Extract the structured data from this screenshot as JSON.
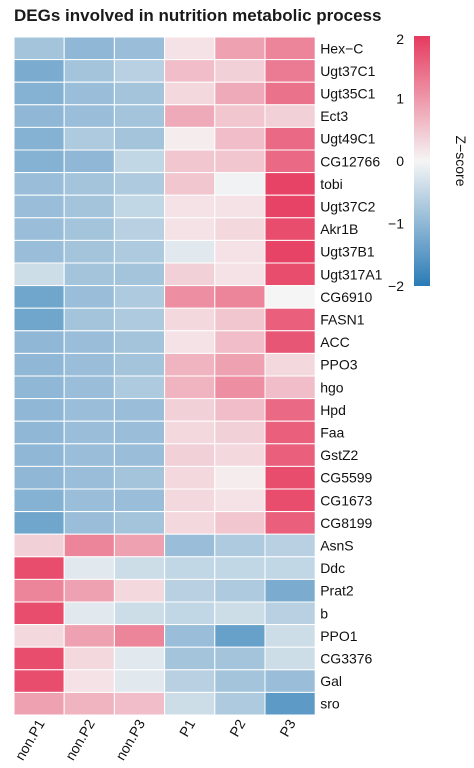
{
  "chart_data": {
    "type": "heatmap",
    "title": "DEGs involved in nutrition metabolic process",
    "columns": [
      "non.P1",
      "non.P2",
      "non.P3",
      "P1",
      "P2",
      "P3"
    ],
    "rows": [
      "Hex−C",
      "Ugt37C1",
      "Ugt35C1",
      "Ect3",
      "Ugt49C1",
      "CG12766",
      "tobi",
      "Ugt37C2",
      "Akr1B",
      "Ugt37B1",
      "Ugt317A1",
      "CG6910",
      "FASN1",
      "ACC",
      "PPO3",
      "hgo",
      "Hpd",
      "Faa",
      "GstZ2",
      "CG5599",
      "CG1673",
      "CG8199",
      "AsnS",
      "Ddc",
      "Prat2",
      "b",
      "PPO1",
      "CG3376",
      "Gal",
      "sro"
    ],
    "values": [
      [
        -0.8,
        -1.0,
        -0.9,
        0.2,
        0.9,
        1.2
      ],
      [
        -1.2,
        -0.8,
        -0.6,
        0.6,
        0.4,
        1.3
      ],
      [
        -1.1,
        -0.9,
        -0.8,
        0.3,
        0.8,
        1.4
      ],
      [
        -1.0,
        -0.9,
        -0.8,
        0.8,
        0.5,
        0.4
      ],
      [
        -1.1,
        -0.7,
        -0.8,
        0.1,
        0.6,
        1.5
      ],
      [
        -1.1,
        -1.0,
        -0.5,
        0.5,
        0.5,
        1.5
      ],
      [
        -0.9,
        -0.8,
        -0.7,
        0.5,
        -0.05,
        1.9
      ],
      [
        -0.9,
        -0.8,
        -0.5,
        0.2,
        0.2,
        1.9
      ],
      [
        -0.9,
        -0.8,
        -0.6,
        0.2,
        0.3,
        1.8
      ],
      [
        -0.9,
        -0.8,
        -0.7,
        -0.2,
        0.2,
        1.9
      ],
      [
        -0.4,
        -0.8,
        -0.8,
        0.4,
        0.2,
        1.8
      ],
      [
        -1.3,
        -0.9,
        -0.7,
        1.1,
        1.2,
        0.0
      ],
      [
        -1.3,
        -0.8,
        -0.7,
        0.3,
        0.5,
        1.6
      ],
      [
        -1.0,
        -0.9,
        -0.8,
        0.2,
        0.6,
        1.7
      ],
      [
        -1.0,
        -0.9,
        -0.8,
        0.7,
        0.9,
        0.3
      ],
      [
        -1.0,
        -0.9,
        -0.7,
        0.7,
        1.1,
        0.6
      ],
      [
        -1.0,
        -0.9,
        -0.9,
        0.4,
        0.6,
        1.5
      ],
      [
        -1.0,
        -0.9,
        -0.9,
        0.3,
        0.4,
        1.6
      ],
      [
        -1.0,
        -0.9,
        -0.9,
        0.4,
        0.3,
        1.6
      ],
      [
        -1.0,
        -0.9,
        -0.8,
        0.3,
        0.1,
        1.8
      ],
      [
        -1.1,
        -0.9,
        -0.9,
        0.3,
        0.2,
        1.8
      ],
      [
        -1.3,
        -0.9,
        -0.8,
        0.3,
        0.5,
        1.6
      ],
      [
        0.4,
        1.2,
        0.9,
        -0.9,
        -0.7,
        -0.6
      ],
      [
        1.8,
        -0.2,
        -0.4,
        -0.5,
        -0.5,
        -0.5
      ],
      [
        1.2,
        0.9,
        0.3,
        -0.6,
        -0.7,
        -1.2
      ],
      [
        1.8,
        -0.2,
        -0.4,
        -0.5,
        -0.4,
        -0.6
      ],
      [
        0.3,
        0.9,
        1.2,
        -0.9,
        -1.4,
        -0.4
      ],
      [
        1.8,
        0.3,
        -0.2,
        -0.8,
        -0.8,
        -0.4
      ],
      [
        1.8,
        0.2,
        -0.2,
        -0.6,
        -0.8,
        -0.9
      ],
      [
        0.9,
        0.7,
        0.6,
        -0.4,
        -0.7,
        -1.5
      ]
    ],
    "colorbar": {
      "title": "Z−score",
      "min": -2,
      "max": 2,
      "ticks": [
        "2",
        "1",
        "0",
        "−1",
        "−2"
      ],
      "tick_values": [
        2,
        1,
        0,
        -1,
        -2
      ],
      "low_color": "#2a7bb6",
      "mid_color": "#f5f5f5",
      "high_color": "#e63a5e"
    }
  }
}
